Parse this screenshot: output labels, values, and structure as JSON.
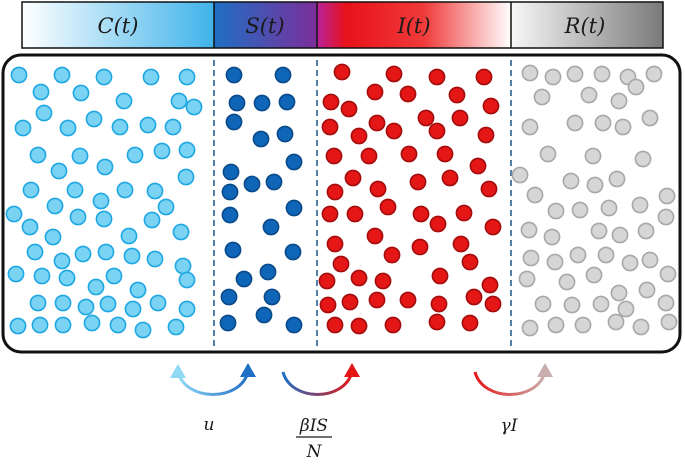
{
  "header": {
    "compartments": [
      {
        "key": "C",
        "label": "C(t)",
        "grad_start": "#ffffff",
        "grad_end": "#3fb3ea"
      },
      {
        "key": "S",
        "label": "S(t)",
        "grad_start": "#1f6fc4",
        "grad_end": "#7b2e9a"
      },
      {
        "key": "I",
        "label": "I(t)",
        "grad_start": "#b7229a",
        "grad_end": "#ffffff"
      },
      {
        "key": "R",
        "label": "R(t)",
        "grad_start": "#f7f7f7",
        "grad_end": "#7a7a7a"
      }
    ]
  },
  "colors": {
    "C": {
      "fill": "#7ad3f3",
      "stroke": "#1fa7e3"
    },
    "S": {
      "fill": "#0f66b8",
      "stroke": "#0a4a8a"
    },
    "I": {
      "fill": "#e41616",
      "stroke": "#a30d0d"
    },
    "R": {
      "fill": "#d6d6d6",
      "stroke": "#a8a8a8"
    }
  },
  "transitions": [
    {
      "label": "u",
      "from_color": "#7ad3f3",
      "to_color": "#1f6fc4"
    },
    {
      "label_num": "βIS",
      "label_den": "N",
      "from_color": "#1f6fc4",
      "to_color": "#e41616"
    },
    {
      "label": "γI",
      "from_color": "#e41616",
      "to_color": "#c9aeae"
    }
  ]
}
